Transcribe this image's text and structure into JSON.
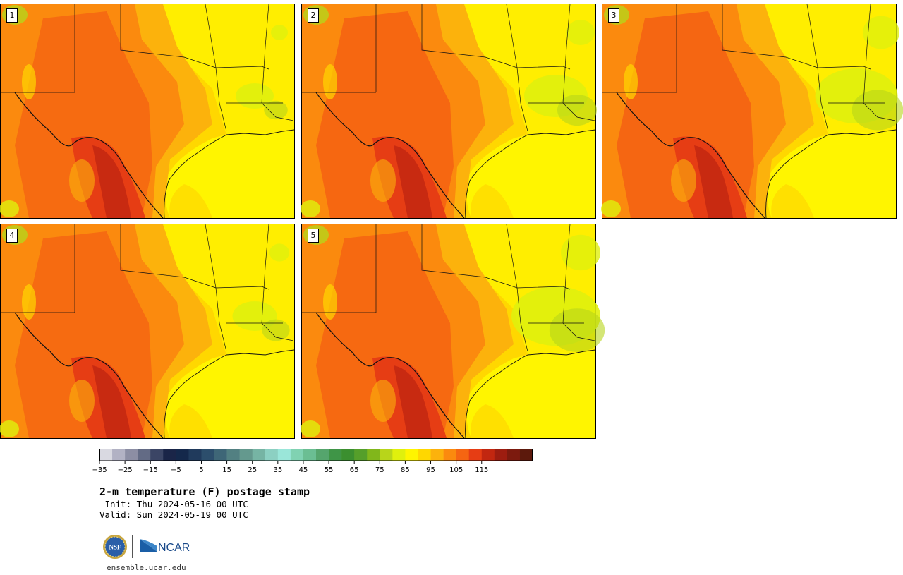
{
  "stamps": [
    {
      "label": "1"
    },
    {
      "label": "2"
    },
    {
      "label": "3"
    },
    {
      "label": "4"
    },
    {
      "label": "5"
    }
  ],
  "colorbar": {
    "colors": [
      "#d9d9e1",
      "#b2b2c4",
      "#8c8ea4",
      "#636b85",
      "#3b4565",
      "#1a2548",
      "#14284b",
      "#203a5c",
      "#2c4e6c",
      "#3e6677",
      "#528082",
      "#64998e",
      "#76b4a4",
      "#8cd0c2",
      "#9ae6d9",
      "#80d2b2",
      "#6bbe93",
      "#55a56d",
      "#3f9547",
      "#3b8f2f",
      "#559f2a",
      "#81b71b",
      "#b8d51a",
      "#e0f00d",
      "#fff500",
      "#ffd700",
      "#fcb20c",
      "#fb8a0e",
      "#f56512",
      "#e63d14",
      "#c22710",
      "#9d1d10",
      "#7c1a0e",
      "#5c190c"
    ],
    "tick_labels": [
      "−35",
      "−25",
      "−15",
      "−5",
      "5",
      "15",
      "25",
      "35",
      "45",
      "55",
      "65",
      "75",
      "85",
      "95",
      "105",
      "115"
    ]
  },
  "title": "2-m temperature (F) postage stamp",
  "init_line": " Init: Thu 2024-05-16 00 UTC",
  "valid_line": "Valid: Sun 2024-05-19 00 UTC",
  "logos": {
    "nsf": "NSF",
    "ncar": "NCAR"
  },
  "website": "ensemble.ucar.edu"
}
